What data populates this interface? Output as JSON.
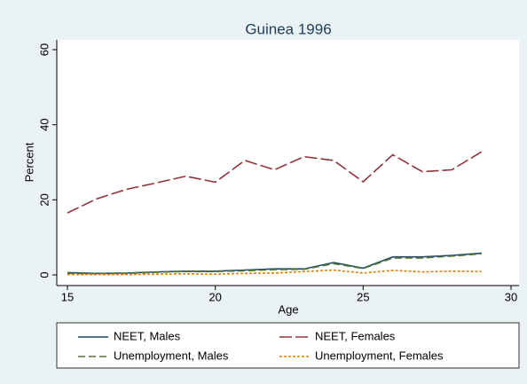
{
  "chart_data": {
    "type": "line",
    "title": "Guinea 1996",
    "x_label": "Age",
    "y_label": "Percent",
    "x": [
      15,
      16,
      17,
      18,
      19,
      20,
      21,
      22,
      23,
      24,
      25,
      26,
      27,
      28,
      29
    ],
    "series": [
      {
        "name": "NEET, Males",
        "color": "#1a476f",
        "dash": "none",
        "values": [
          0.6,
          0.4,
          0.5,
          0.8,
          1.0,
          1.0,
          1.3,
          1.6,
          1.6,
          3.3,
          1.8,
          4.8,
          4.8,
          5.2,
          5.8
        ]
      },
      {
        "name": "NEET, Females",
        "color": "#90353b",
        "dash": "14 4",
        "values": [
          16.5,
          20.3,
          22.8,
          24.5,
          26.3,
          24.7,
          30.5,
          28.0,
          31.5,
          30.5,
          24.8,
          32.0,
          27.5,
          28.0,
          32.8
        ]
      },
      {
        "name": "Unemployment, Males",
        "color": "#55752f",
        "dash": "8 4",
        "values": [
          0.4,
          0.3,
          0.4,
          0.7,
          0.9,
          0.9,
          1.1,
          1.4,
          1.5,
          3.0,
          1.7,
          4.5,
          4.5,
          5.0,
          5.6
        ]
      },
      {
        "name": "Unemployment, Females",
        "color": "#e37e00",
        "dash": "3 2",
        "values": [
          0.1,
          0.1,
          0.1,
          0.2,
          0.3,
          0.2,
          0.4,
          0.5,
          0.9,
          1.3,
          0.5,
          1.2,
          0.8,
          1.0,
          0.9
        ]
      }
    ],
    "xlim": [
      15,
      30
    ],
    "xticks": [
      15,
      20,
      25,
      30
    ],
    "ylim": [
      0,
      60
    ],
    "yticks": [
      0,
      20,
      40,
      60
    ],
    "grid": false
  }
}
